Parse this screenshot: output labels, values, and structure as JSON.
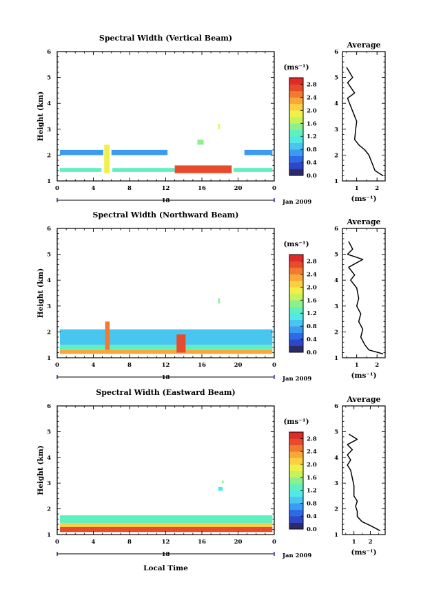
{
  "figure": {
    "date_label": "Jan 2009",
    "day_label": "18",
    "x_axis_title": "Local Time",
    "colorbar_unit": "(ms⁻¹)",
    "profile_title": "Average",
    "profile_unit": "(ms⁻¹)"
  },
  "colors": {
    "colormap": [
      "#2b2b6b",
      "#2e46c8",
      "#2f6ae6",
      "#3b9bf2",
      "#48c6f0",
      "#52e8e6",
      "#60f0c0",
      "#8ef08c",
      "#c6f25c",
      "#f0f04a",
      "#f8d040",
      "#f8a83a",
      "#f07a30",
      "#e84a2c",
      "#e02a28"
    ]
  },
  "chart_data": [
    {
      "type": "heatmap",
      "title": "Spectral Width (Vertical Beam)",
      "ylabel": "Height (km)",
      "xlabel": "",
      "x_ticks": [
        "0",
        "4",
        "8",
        "12",
        "16",
        "20",
        "0"
      ],
      "xlim": [
        0,
        24
      ],
      "y_ticks": [
        "1",
        "2",
        "3",
        "4",
        "5",
        "6"
      ],
      "ylim": [
        1,
        6
      ],
      "colorbar": {
        "ticks": [
          "0.0",
          "0.4",
          "0.8",
          "1.2",
          "1.6",
          "2.0",
          "2.4",
          "2.8"
        ],
        "range": [
          0,
          3.0
        ]
      },
      "layers": [
        {
          "x": [
            0.3,
            5.1
          ],
          "y": [
            2.0,
            2.2
          ],
          "value": 0.7
        },
        {
          "x": [
            6.0,
            12.2
          ],
          "y": [
            2.0,
            2.2
          ],
          "value": 0.7
        },
        {
          "x": [
            20.7,
            23.8
          ],
          "y": [
            2.0,
            2.2
          ],
          "value": 0.7
        },
        {
          "x": [
            0.3,
            4.9
          ],
          "y": [
            1.35,
            1.5
          ],
          "value": 1.2
        },
        {
          "x": [
            6.1,
            13.0
          ],
          "y": [
            1.35,
            1.5
          ],
          "value": 1.2
        },
        {
          "x": [
            19.5,
            23.8
          ],
          "y": [
            1.35,
            1.5
          ],
          "value": 1.2
        },
        {
          "x": [
            13.0,
            19.3
          ],
          "y": [
            1.3,
            1.6
          ],
          "value": 2.8
        },
        {
          "x": [
            5.2,
            5.8
          ],
          "y": [
            1.3,
            2.4
          ],
          "value": 2.0
        },
        {
          "x": [
            17.8,
            18.0
          ],
          "y": [
            3.0,
            3.2
          ],
          "value": 2.0
        },
        {
          "x": [
            15.5,
            16.2
          ],
          "y": [
            2.4,
            2.6
          ],
          "value": 1.6
        }
      ],
      "profile": {
        "xlim": [
          0.3,
          2.4
        ],
        "x_ticks": [
          "1",
          "2"
        ],
        "points": [
          [
            0.5,
            5.4
          ],
          [
            0.8,
            5.0
          ],
          [
            0.55,
            4.8
          ],
          [
            0.9,
            4.4
          ],
          [
            0.55,
            4.2
          ],
          [
            0.7,
            3.9
          ],
          [
            0.85,
            3.6
          ],
          [
            1.0,
            3.3
          ],
          [
            0.95,
            3.0
          ],
          [
            0.9,
            2.6
          ],
          [
            1.1,
            2.4
          ],
          [
            1.4,
            2.2
          ],
          [
            1.6,
            2.0
          ],
          [
            1.7,
            1.8
          ],
          [
            1.8,
            1.6
          ],
          [
            1.9,
            1.4
          ],
          [
            2.3,
            1.2
          ]
        ]
      }
    },
    {
      "type": "heatmap",
      "title": "Spectral Width (Northward Beam)",
      "ylabel": "Height (km)",
      "xlabel": "",
      "x_ticks": [
        "0",
        "4",
        "8",
        "12",
        "16",
        "20",
        "0"
      ],
      "xlim": [
        0,
        24
      ],
      "y_ticks": [
        "1",
        "2",
        "3",
        "4",
        "5",
        "6"
      ],
      "ylim": [
        1,
        6
      ],
      "colorbar": {
        "ticks": [
          "0.0",
          "0.4",
          "0.8",
          "1.2",
          "1.6",
          "2.0",
          "2.4",
          "2.8"
        ],
        "range": [
          0,
          3.0
        ]
      },
      "layers": [
        {
          "x": [
            0.3,
            23.8
          ],
          "y": [
            1.15,
            1.3
          ],
          "value": 2.4
        },
        {
          "x": [
            0.3,
            23.8
          ],
          "y": [
            1.3,
            1.5
          ],
          "value": 1.2
        },
        {
          "x": [
            0.3,
            23.8
          ],
          "y": [
            1.5,
            2.1
          ],
          "value": 0.9
        },
        {
          "x": [
            5.3,
            5.8
          ],
          "y": [
            1.3,
            2.4
          ],
          "value": 2.6
        },
        {
          "x": [
            13.2,
            14.2
          ],
          "y": [
            1.2,
            1.9
          ],
          "value": 2.8
        },
        {
          "x": [
            17.8,
            18.0
          ],
          "y": [
            3.1,
            3.3
          ],
          "value": 1.6
        }
      ],
      "profile": {
        "xlim": [
          0.3,
          2.4
        ],
        "x_ticks": [
          "1",
          "2"
        ],
        "points": [
          [
            0.6,
            5.5
          ],
          [
            0.8,
            5.2
          ],
          [
            0.55,
            5.0
          ],
          [
            1.3,
            4.8
          ],
          [
            0.6,
            4.5
          ],
          [
            0.9,
            4.2
          ],
          [
            0.7,
            4.0
          ],
          [
            1.0,
            3.7
          ],
          [
            1.1,
            3.3
          ],
          [
            1.0,
            3.0
          ],
          [
            1.2,
            2.7
          ],
          [
            1.1,
            2.4
          ],
          [
            1.3,
            2.1
          ],
          [
            1.2,
            1.8
          ],
          [
            1.4,
            1.5
          ],
          [
            1.6,
            1.3
          ],
          [
            2.3,
            1.15
          ]
        ]
      }
    },
    {
      "type": "heatmap",
      "title": "Spectral Width (Eastward Beam)",
      "ylabel": "Height (km)",
      "xlabel": "Local Time",
      "x_ticks": [
        "0",
        "4",
        "8",
        "12",
        "16",
        "20",
        "0"
      ],
      "xlim": [
        0,
        24
      ],
      "y_ticks": [
        "1",
        "2",
        "3",
        "4",
        "5",
        "6"
      ],
      "ylim": [
        1,
        6
      ],
      "colorbar": {
        "ticks": [
          "0.0",
          "0.4",
          "0.8",
          "1.2",
          "1.6",
          "2.0",
          "2.4",
          "2.8"
        ],
        "range": [
          0,
          3.0
        ]
      },
      "layers": [
        {
          "x": [
            0.3,
            23.8
          ],
          "y": [
            1.1,
            1.3
          ],
          "value": 2.8
        },
        {
          "x": [
            0.3,
            23.8
          ],
          "y": [
            1.3,
            1.45
          ],
          "value": 2.2
        },
        {
          "x": [
            0.3,
            23.8
          ],
          "y": [
            1.45,
            1.75
          ],
          "value": 1.3
        },
        {
          "x": [
            17.8,
            18.3
          ],
          "y": [
            2.7,
            2.85
          ],
          "value": 1.0
        },
        {
          "x": [
            18.2,
            18.4
          ],
          "y": [
            3.0,
            3.1
          ],
          "value": 1.6
        }
      ],
      "profile": {
        "xlim": [
          0.3,
          2.9
        ],
        "x_ticks": [
          "1",
          "2"
        ],
        "points": [
          [
            0.7,
            4.9
          ],
          [
            1.2,
            4.7
          ],
          [
            0.6,
            4.5
          ],
          [
            0.9,
            4.3
          ],
          [
            0.6,
            4.1
          ],
          [
            0.8,
            3.9
          ],
          [
            0.6,
            3.7
          ],
          [
            0.8,
            3.5
          ],
          [
            0.9,
            3.2
          ],
          [
            1.0,
            2.9
          ],
          [
            1.0,
            2.5
          ],
          [
            1.2,
            2.3
          ],
          [
            1.1,
            2.1
          ],
          [
            1.2,
            1.9
          ],
          [
            1.2,
            1.7
          ],
          [
            1.5,
            1.5
          ],
          [
            2.0,
            1.35
          ],
          [
            2.6,
            1.15
          ]
        ]
      }
    }
  ]
}
